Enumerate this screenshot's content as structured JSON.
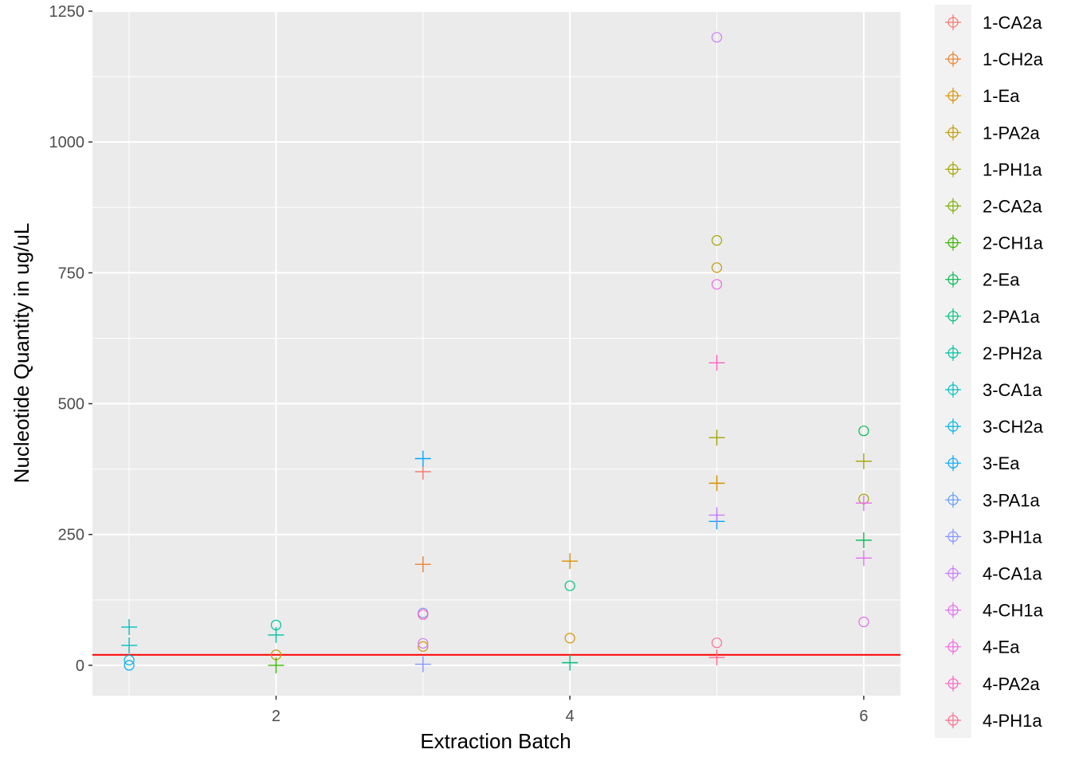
{
  "chart_data": {
    "type": "scatter",
    "xlabel": "Extraction Batch",
    "ylabel": "Nucleotide Quantity in ug/uL",
    "xlim": [
      0.75,
      6.25
    ],
    "ylim": [
      -58,
      1250
    ],
    "x_ticks": [
      2,
      4,
      6
    ],
    "x_tick_labels": [
      "2",
      "4",
      "6"
    ],
    "y_ticks": [
      0,
      250,
      500,
      750,
      1000,
      1250
    ],
    "y_tick_labels": [
      "0",
      "250",
      "500",
      "750",
      "1000",
      "1250"
    ],
    "grid": true,
    "legend_position": "right",
    "reference_line": {
      "y": 20,
      "color": "#ff0000"
    },
    "shapes": {
      "circle": "open circle",
      "plus": "plus"
    },
    "series": [
      {
        "name": "1-CA2a",
        "color": "#F8766D",
        "points": [
          {
            "x": 3,
            "y": 370,
            "shape": "plus"
          }
        ]
      },
      {
        "name": "1-CH2a",
        "color": "#EA8331",
        "points": [
          {
            "x": 3,
            "y": 193,
            "shape": "plus"
          }
        ]
      },
      {
        "name": "1-Ea",
        "color": "#D89000",
        "points": [
          {
            "x": 4,
            "y": 199,
            "shape": "plus"
          },
          {
            "x": 5,
            "y": 348,
            "shape": "plus"
          },
          {
            "x": 3,
            "y": 36,
            "shape": "circle"
          },
          {
            "x": 4,
            "y": 52,
            "shape": "circle"
          }
        ]
      },
      {
        "name": "1-PA2a",
        "color": "#C09B00",
        "points": [
          {
            "x": 5,
            "y": 760,
            "shape": "circle"
          },
          {
            "x": 2,
            "y": 20,
            "shape": "circle"
          }
        ]
      },
      {
        "name": "1-PH1a",
        "color": "#A3A500",
        "points": [
          {
            "x": 5,
            "y": 812,
            "shape": "circle"
          },
          {
            "x": 5,
            "y": 435,
            "shape": "plus"
          },
          {
            "x": 6,
            "y": 390,
            "shape": "plus"
          },
          {
            "x": 6,
            "y": 318,
            "shape": "circle"
          }
        ]
      },
      {
        "name": "2-CA2a",
        "color": "#7CAE00",
        "points": []
      },
      {
        "name": "2-CH1a",
        "color": "#39B600",
        "points": [
          {
            "x": 2,
            "y": 0,
            "shape": "plus"
          }
        ]
      },
      {
        "name": "2-Ea",
        "color": "#00BB4E",
        "points": [
          {
            "x": 6,
            "y": 448,
            "shape": "circle"
          },
          {
            "x": 6,
            "y": 239,
            "shape": "plus"
          }
        ]
      },
      {
        "name": "2-PA1a",
        "color": "#00BF7D",
        "points": [
          {
            "x": 4,
            "y": 152,
            "shape": "circle"
          },
          {
            "x": 4,
            "y": 5,
            "shape": "plus"
          }
        ]
      },
      {
        "name": "2-PH2a",
        "color": "#00C1A3",
        "points": [
          {
            "x": 2,
            "y": 77,
            "shape": "circle"
          },
          {
            "x": 2,
            "y": 58,
            "shape": "plus"
          }
        ]
      },
      {
        "name": "3-CA1a",
        "color": "#00BFC4",
        "points": [
          {
            "x": 1,
            "y": 73,
            "shape": "plus"
          },
          {
            "x": 1,
            "y": 38,
            "shape": "plus"
          }
        ]
      },
      {
        "name": "3-CH2a",
        "color": "#00B8E7",
        "points": [
          {
            "x": 1,
            "y": 10,
            "shape": "circle"
          }
        ]
      },
      {
        "name": "3-Ea",
        "color": "#00A9FF",
        "points": [
          {
            "x": 1,
            "y": 0,
            "shape": "circle"
          },
          {
            "x": 3,
            "y": 395,
            "shape": "plus"
          },
          {
            "x": 5,
            "y": 275,
            "shape": "plus"
          }
        ]
      },
      {
        "name": "3-PA1a",
        "color": "#619CFF",
        "points": []
      },
      {
        "name": "3-PH1a",
        "color": "#8494FF",
        "points": [
          {
            "x": 3,
            "y": 100,
            "shape": "circle"
          },
          {
            "x": 3,
            "y": 2,
            "shape": "plus"
          }
        ]
      },
      {
        "name": "4-CA1a",
        "color": "#C77CFF",
        "points": [
          {
            "x": 5,
            "y": 1200,
            "shape": "circle"
          },
          {
            "x": 5,
            "y": 287,
            "shape": "plus"
          },
          {
            "x": 3,
            "y": 42,
            "shape": "circle"
          }
        ]
      },
      {
        "name": "4-CH1a",
        "color": "#E76BF3",
        "points": [
          {
            "x": 6,
            "y": 310,
            "shape": "plus"
          },
          {
            "x": 6,
            "y": 205,
            "shape": "plus"
          },
          {
            "x": 6,
            "y": 83,
            "shape": "circle"
          }
        ]
      },
      {
        "name": "4-Ea",
        "color": "#F564E3",
        "points": [
          {
            "x": 5,
            "y": 728,
            "shape": "circle"
          }
        ]
      },
      {
        "name": "4-PA2a",
        "color": "#FF61C3",
        "points": [
          {
            "x": 5,
            "y": 578,
            "shape": "plus"
          },
          {
            "x": 3,
            "y": 97,
            "shape": "circle"
          }
        ]
      },
      {
        "name": "4-PH1a",
        "color": "#FF6C91",
        "points": [
          {
            "x": 5,
            "y": 43,
            "shape": "circle"
          },
          {
            "x": 5,
            "y": 15,
            "shape": "plus"
          }
        ]
      }
    ]
  }
}
